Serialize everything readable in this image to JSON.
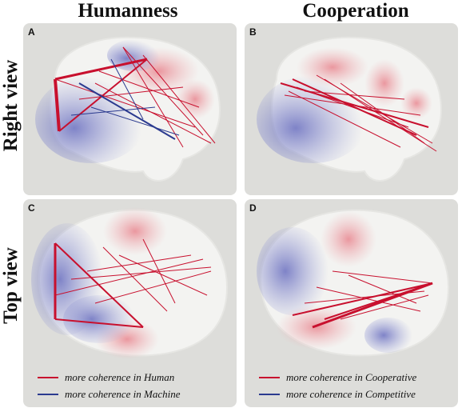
{
  "columns": [
    "Humanness",
    "Cooperation"
  ],
  "rows": [
    "Right view",
    "Top view"
  ],
  "panels": [
    {
      "letter": "A"
    },
    {
      "letter": "B"
    },
    {
      "letter": "C"
    },
    {
      "letter": "D"
    }
  ],
  "legends": {
    "left": [
      "more coherence in Human",
      "more coherence in Machine"
    ],
    "right": [
      "more coherence in Cooperative",
      "more coherence in Competitive"
    ]
  },
  "colors": {
    "red": "#c8102e",
    "blue": "#2b3a8f",
    "panel_bg": "#ddddda"
  }
}
